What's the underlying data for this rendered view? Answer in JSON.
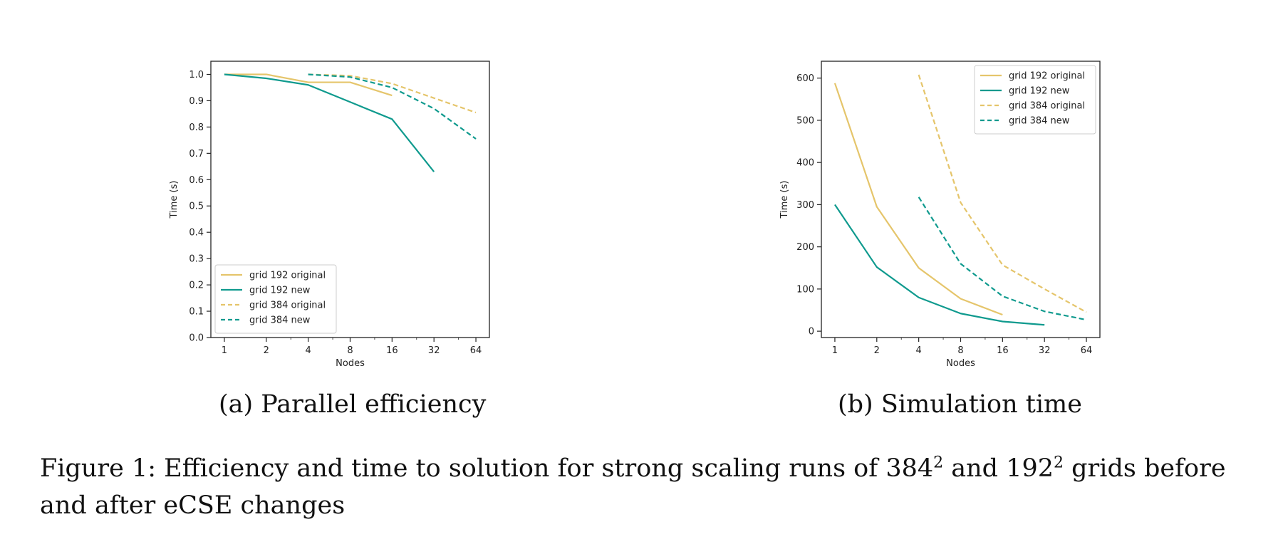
{
  "colors": {
    "original": "#e5c56b",
    "new": "#0f9a8e",
    "axis": "#222222"
  },
  "figure": {
    "subcaptions": [
      "(a) Parallel efficiency",
      "(b) Simulation time"
    ],
    "caption": {
      "part1": "Figure 1: Efficiency and time to solution for strong scaling runs of 384",
      "sup1": "2",
      "part2": " and 192",
      "sup2": "2",
      "part3": " grids before and after eCSE changes"
    }
  },
  "chart_data": [
    {
      "type": "line",
      "xlabel": "Nodes",
      "ylabel": "Time (s)",
      "x_scale": "log2",
      "x_ticks": [
        1,
        2,
        4,
        8,
        16,
        32,
        64
      ],
      "xlim": [
        0.8,
        80
      ],
      "y_ticks": [
        0.0,
        0.1,
        0.2,
        0.3,
        0.4,
        0.5,
        0.6,
        0.7,
        0.8,
        0.9,
        1.0
      ],
      "ylim": [
        0.0,
        1.05
      ],
      "legend_position": "lower-left",
      "grid": false,
      "series": [
        {
          "name": "grid 192 original",
          "color": "#e5c56b",
          "style": "solid",
          "x": [
            1,
            2,
            4,
            8,
            16
          ],
          "values": [
            1.0,
            1.0,
            0.97,
            0.97,
            0.92
          ]
        },
        {
          "name": "grid 192 new",
          "color": "#0f9a8e",
          "style": "solid",
          "x": [
            1,
            2,
            4,
            8,
            16,
            32
          ],
          "values": [
            1.0,
            0.985,
            0.96,
            0.895,
            0.83,
            0.63
          ]
        },
        {
          "name": "grid 384 original",
          "color": "#e5c56b",
          "style": "dashed",
          "x": [
            4,
            8,
            16,
            32,
            64
          ],
          "values": [
            1.0,
            0.995,
            0.965,
            0.91,
            0.855
          ]
        },
        {
          "name": "grid 384 new",
          "color": "#0f9a8e",
          "style": "dashed",
          "x": [
            4,
            8,
            16,
            32,
            64
          ],
          "values": [
            1.0,
            0.99,
            0.95,
            0.87,
            0.755
          ]
        }
      ]
    },
    {
      "type": "line",
      "xlabel": "Nodes",
      "ylabel": "Time (s)",
      "x_scale": "log2",
      "x_ticks": [
        1,
        2,
        4,
        8,
        16,
        32,
        64
      ],
      "xlim": [
        0.8,
        80
      ],
      "y_ticks": [
        0,
        100,
        200,
        300,
        400,
        500,
        600
      ],
      "ylim": [
        -15,
        640
      ],
      "legend_position": "upper-right",
      "grid": false,
      "series": [
        {
          "name": "grid 192 original",
          "color": "#e5c56b",
          "style": "solid",
          "x": [
            1,
            2,
            4,
            8,
            16
          ],
          "values": [
            588,
            295,
            150,
            77,
            39
          ]
        },
        {
          "name": "grid 192 new",
          "color": "#0f9a8e",
          "style": "solid",
          "x": [
            1,
            2,
            4,
            8,
            16,
            32
          ],
          "values": [
            300,
            152,
            80,
            42,
            23,
            15
          ]
        },
        {
          "name": "grid 384 original",
          "color": "#e5c56b",
          "style": "dashed",
          "x": [
            4,
            8,
            16,
            32,
            64
          ],
          "values": [
            608,
            305,
            157,
            100,
            45
          ]
        },
        {
          "name": "grid 384 new",
          "color": "#0f9a8e",
          "style": "dashed",
          "x": [
            4,
            8,
            16,
            32,
            64
          ],
          "values": [
            318,
            160,
            83,
            47,
            27
          ]
        }
      ]
    }
  ]
}
